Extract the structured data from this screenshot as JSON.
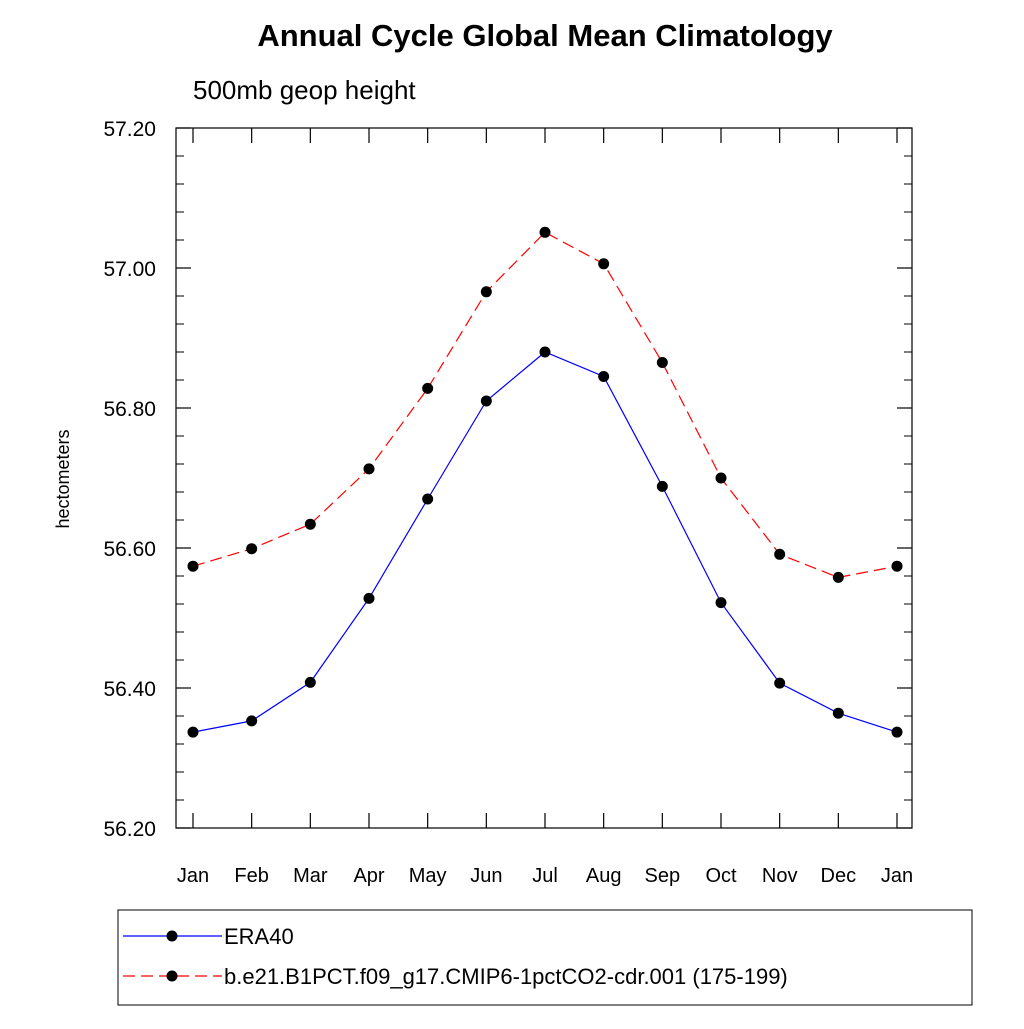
{
  "chart_data": {
    "type": "line",
    "title": "Annual Cycle Global Mean Climatology",
    "subtitle": "500mb geop height",
    "xlabel": "",
    "ylabel": "hectometers",
    "categories": [
      "Jan",
      "Feb",
      "Mar",
      "Apr",
      "May",
      "Jun",
      "Jul",
      "Aug",
      "Sep",
      "Oct",
      "Nov",
      "Dec",
      "Jan"
    ],
    "ylim": [
      56.2,
      57.2
    ],
    "yticks": [
      56.2,
      56.4,
      56.6,
      56.8,
      57.0,
      57.2
    ],
    "ytick_labels": [
      "56.20",
      "56.40",
      "56.60",
      "56.80",
      "57.00",
      "57.20"
    ],
    "yminor_step": 0.04,
    "series": [
      {
        "name": "ERA40",
        "color": "#0000ff",
        "dashed": false,
        "values": [
          56.337,
          56.353,
          56.408,
          56.528,
          56.67,
          56.81,
          56.88,
          56.845,
          56.688,
          56.522,
          56.407,
          56.364,
          56.337
        ]
      },
      {
        "name": "b.e21.B1PCT.f09_g17.CMIP6-1pctCO2-cdr.001 (175-199)",
        "color": "#ff0000",
        "dashed": true,
        "values": [
          56.574,
          56.599,
          56.634,
          56.713,
          56.828,
          56.966,
          57.051,
          57.006,
          56.865,
          56.7,
          56.591,
          56.558,
          56.574
        ]
      }
    ],
    "legend": {
      "placement": "bottom",
      "entries": [
        "ERA40",
        "b.e21.B1PCT.f09_g17.CMIP6-1pctCO2-cdr.001 (175-199)"
      ]
    },
    "grid": false
  }
}
